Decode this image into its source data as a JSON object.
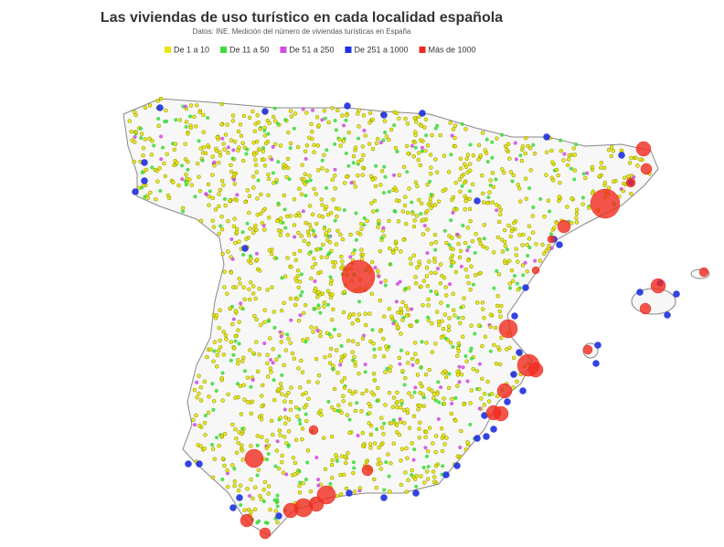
{
  "title": "Las viviendas de uso turístico en cada localidad española",
  "subtitle": "Datos: INE. Medición del número de viviendas turísticas en España",
  "legend": {
    "items": [
      {
        "label": "De 1 a 10",
        "color": "#e8e800"
      },
      {
        "label": "De 11 a 50",
        "color": "#3ddc3d"
      },
      {
        "label": "De 51 a 250",
        "color": "#d24ee0"
      },
      {
        "label": "De 251 a 1000",
        "color": "#1e2fe0"
      },
      {
        "label": "Más de 1000",
        "color": "#f02a1e"
      }
    ]
  }
}
